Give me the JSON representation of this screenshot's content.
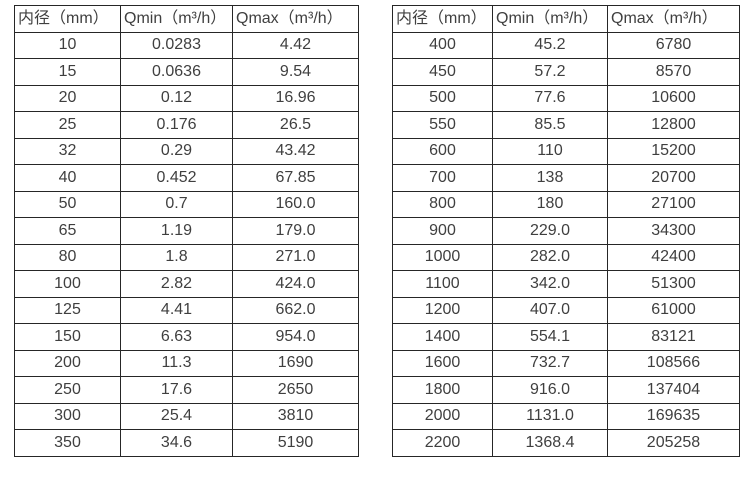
{
  "colors": {
    "background": "#ffffff",
    "border": "#262626",
    "text": "#3f3f3f"
  },
  "tables": [
    {
      "name": "flow-table-small-diameters",
      "headers": [
        "内径（mm）",
        "Qmin（m³/h）",
        "Qmax（m³/h）"
      ],
      "rows": [
        [
          "10",
          "0.0283",
          "4.42"
        ],
        [
          "15",
          "0.0636",
          "9.54"
        ],
        [
          "20",
          "0.12",
          "16.96"
        ],
        [
          "25",
          "0.176",
          "26.5"
        ],
        [
          "32",
          "0.29",
          "43.42"
        ],
        [
          "40",
          "0.452",
          "67.85"
        ],
        [
          "50",
          "0.7",
          "160.0"
        ],
        [
          "65",
          "1.19",
          "179.0"
        ],
        [
          "80",
          "1.8",
          "271.0"
        ],
        [
          "100",
          "2.82",
          "424.0"
        ],
        [
          "125",
          "4.41",
          "662.0"
        ],
        [
          "150",
          "6.63",
          "954.0"
        ],
        [
          "200",
          "11.3",
          "1690"
        ],
        [
          "250",
          "17.6",
          "2650"
        ],
        [
          "300",
          "25.4",
          "3810"
        ],
        [
          "350",
          "34.6",
          "5190"
        ]
      ]
    },
    {
      "name": "flow-table-large-diameters",
      "headers": [
        "内径（mm）",
        "Qmin（m³/h）",
        "Qmax（m³/h）"
      ],
      "rows": [
        [
          "400",
          "45.2",
          "6780"
        ],
        [
          "450",
          "57.2",
          "8570"
        ],
        [
          "500",
          "77.6",
          "10600"
        ],
        [
          "550",
          "85.5",
          "12800"
        ],
        [
          "600",
          "110",
          "15200"
        ],
        [
          "700",
          "138",
          "20700"
        ],
        [
          "800",
          "180",
          "27100"
        ],
        [
          "900",
          "229.0",
          "34300"
        ],
        [
          "1000",
          "282.0",
          "42400"
        ],
        [
          "1100",
          "342.0",
          "51300"
        ],
        [
          "1200",
          "407.0",
          "61000"
        ],
        [
          "1400",
          "554.1",
          "83121"
        ],
        [
          "1600",
          "732.7",
          "108566"
        ],
        [
          "1800",
          "916.0",
          "137404"
        ],
        [
          "2000",
          "1131.0",
          "169635"
        ],
        [
          "2200",
          "1368.4",
          "205258"
        ]
      ]
    }
  ]
}
